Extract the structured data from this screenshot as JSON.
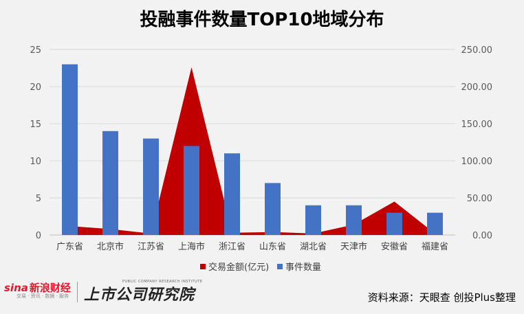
{
  "title": "投融事件数量TOP10地域分布",
  "chart_data": {
    "type": "bar",
    "categories": [
      "广东省",
      "北京市",
      "江苏省",
      "上海市",
      "浙江省",
      "山东省",
      "湖北省",
      "天津市",
      "安徽省",
      "福建省"
    ],
    "series": [
      {
        "name": "交易金额(亿元)",
        "type": "area",
        "axis": "right",
        "color": "#c00000",
        "values": [
          12,
          8,
          2,
          226,
          3,
          4,
          2,
          14,
          45,
          2
        ]
      },
      {
        "name": "事件数量",
        "type": "bar",
        "axis": "left",
        "color": "#4472c4",
        "values": [
          23,
          14,
          13,
          12,
          11,
          7,
          4,
          4,
          3,
          3
        ]
      }
    ],
    "left_axis": {
      "ylim": [
        0,
        25
      ],
      "ticks": [
        "0",
        "5",
        "10",
        "15",
        "20",
        "25"
      ]
    },
    "right_axis": {
      "ylim": [
        0,
        250
      ],
      "ticks": [
        "0.00",
        "50.00",
        "100.00",
        "150.00",
        "200.00",
        "250.00"
      ]
    },
    "grid": true,
    "legend_position": "bottom"
  },
  "footer": {
    "logo_sina": "sina",
    "logo_cn": "新浪财经",
    "logo_sub": "交易 · 资讯 · 数据 · 服务",
    "brand": "上市公司研究院",
    "brand_sub": "PUBLIC COMPANY RESEARCH INSTITUTE",
    "source": "资料来源：天眼查 创投Plus整理"
  }
}
